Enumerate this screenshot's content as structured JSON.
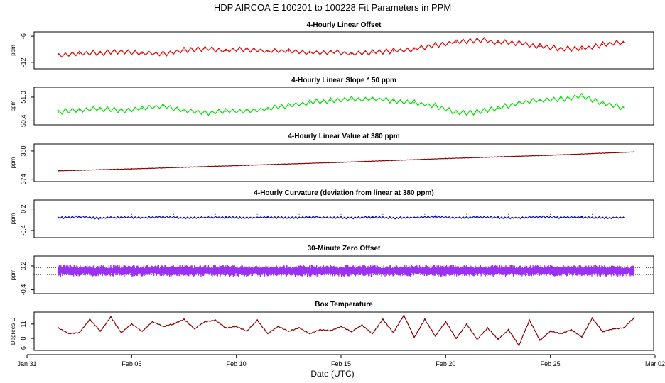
{
  "title": "HDP   AIRCOA E   100201 to 100228   Fit Parameters in PPM",
  "xlabel": "Date (UTC)",
  "x_ticks": [
    {
      "day": 0,
      "label": "Jan 31"
    },
    {
      "day": 5,
      "label": "Feb 05"
    },
    {
      "day": 10,
      "label": "Feb 10"
    },
    {
      "day": 15,
      "label": "Feb 15"
    },
    {
      "day": 20,
      "label": "Feb 20"
    },
    {
      "day": 25,
      "label": "Feb 25"
    },
    {
      "day": 30,
      "label": "Mar 02"
    }
  ],
  "x_range": [
    0,
    30
  ],
  "chart_data": [
    {
      "type": "line",
      "title": "4-Hourly Linear Offset",
      "ylabel": "ppm",
      "color": "#e00000",
      "ylim": [
        -13.5,
        -5
      ],
      "y_ticks": [
        {
          "v": -12,
          "label": "-12"
        },
        {
          "v": -6,
          "label": "-6"
        }
      ],
      "x": [
        1.5,
        2.5,
        3.5,
        4.5,
        5.5,
        6.5,
        7.5,
        8.5,
        9.5,
        10.5,
        11.5,
        12.5,
        13.5,
        14.5,
        15.5,
        16.5,
        17.5,
        18.5,
        19.5,
        20.5,
        21.5,
        22.5,
        23.5,
        24.5,
        25.5,
        26.5,
        27.5,
        28.5
      ],
      "values": [
        -10.2,
        -10.0,
        -9.8,
        -9.6,
        -9.9,
        -10.1,
        -9.2,
        -8.8,
        -9.3,
        -9.0,
        -9.5,
        -9.4,
        -9.8,
        -9.6,
        -10.0,
        -9.7,
        -9.4,
        -8.9,
        -8.0,
        -7.3,
        -6.8,
        -7.4,
        -7.6,
        -8.3,
        -8.8,
        -8.9,
        -7.9,
        -7.4
      ],
      "reference_lines": []
    },
    {
      "type": "line",
      "title": "4-Hourly Linear Slope * 50 ppm",
      "ylabel": "ppm",
      "color": "#00e000",
      "ylim": [
        50.3,
        51.25
      ],
      "y_ticks": [
        {
          "v": 50.4,
          "label": "50.4"
        },
        {
          "v": 51.0,
          "label": "51.0"
        }
      ],
      "x": [
        1.5,
        2.5,
        3.5,
        4.5,
        5.5,
        6.5,
        7.5,
        8.5,
        9.5,
        10.5,
        11.5,
        12.5,
        13.5,
        14.5,
        15.5,
        16.5,
        17.5,
        18.5,
        19.5,
        20.5,
        21.5,
        22.5,
        23.5,
        24.5,
        25.5,
        26.5,
        27.5,
        28.5
      ],
      "values": [
        50.62,
        50.68,
        50.7,
        50.66,
        50.72,
        50.78,
        50.66,
        50.6,
        50.64,
        50.66,
        50.7,
        50.78,
        50.86,
        50.92,
        50.95,
        50.96,
        50.92,
        50.86,
        50.78,
        50.6,
        50.62,
        50.72,
        50.86,
        50.92,
        50.96,
        51.02,
        50.84,
        50.74
      ],
      "reference_lines": []
    },
    {
      "type": "line",
      "title": "4-Hourly Linear Value at 380 ppm",
      "ylabel": "ppm",
      "color": "#8b0000",
      "ylim": [
        373.5,
        381.5
      ],
      "y_ticks": [
        {
          "v": 374,
          "label": "374"
        },
        {
          "v": 380,
          "label": "380"
        }
      ],
      "x": [
        1.5,
        5,
        10,
        15,
        20,
        25,
        29
      ],
      "values": [
        375.8,
        376.2,
        376.9,
        377.6,
        378.4,
        379.1,
        379.8
      ],
      "reference_lines": []
    },
    {
      "type": "line",
      "title": "4-Hourly Curvature (deviation from linear at 380 ppm)",
      "ylabel": "ppm",
      "color": "#0000cc",
      "ylim": [
        -0.6,
        0.45
      ],
      "y_ticks": [
        {
          "v": -0.4,
          "label": "-0.4"
        },
        {
          "v": 0.2,
          "label": "0.2"
        }
      ],
      "x": [
        1.5,
        2.5,
        3.5,
        4.5,
        5.5,
        6.5,
        7.5,
        8.5,
        9.5,
        10.5,
        11.5,
        12.5,
        13.5,
        14.5,
        15.5,
        16.5,
        17.5,
        18.5,
        19.5,
        20.5,
        21.5,
        22.5,
        23.5,
        24.5,
        25.5,
        26.5,
        27.5,
        28.5
      ],
      "values": [
        -0.05,
        -0.02,
        -0.06,
        -0.03,
        -0.05,
        -0.02,
        -0.05,
        -0.04,
        -0.03,
        -0.05,
        -0.03,
        -0.05,
        -0.03,
        -0.04,
        -0.05,
        -0.03,
        -0.05,
        -0.04,
        -0.02,
        -0.05,
        -0.03,
        -0.04,
        -0.05,
        -0.02,
        -0.04,
        -0.03,
        -0.05,
        -0.04
      ],
      "reference_lines": []
    },
    {
      "type": "line",
      "title": "30-Minute Zero Offset",
      "ylabel": "ppm",
      "color": "#9a30f0",
      "ylim": [
        -0.5,
        0.45
      ],
      "y_ticks": [
        {
          "v": -0.4,
          "label": "-0.4"
        },
        {
          "v": 0.2,
          "label": "0.2"
        }
      ],
      "x": [
        1.5,
        29
      ],
      "values": [
        0.08,
        0.08
      ],
      "reference_lines": [
        0.15,
        -0.02
      ]
    },
    {
      "type": "line",
      "title": "Box Temperature",
      "ylabel": "Degrees C",
      "color": "#8b0000",
      "ylim": [
        5.5,
        13.5
      ],
      "y_ticks": [
        {
          "v": 6,
          "label": "6"
        },
        {
          "v": 8,
          "label": "8"
        },
        {
          "v": 11,
          "label": "11"
        }
      ],
      "x": [
        1.5,
        2,
        2.5,
        3,
        3.5,
        4,
        4.5,
        5,
        5.5,
        6,
        6.5,
        7,
        7.5,
        8,
        8.5,
        9,
        9.5,
        10,
        10.5,
        11,
        11.5,
        12,
        12.5,
        13,
        13.5,
        14,
        14.5,
        15,
        15.5,
        16,
        16.5,
        17,
        17.5,
        18,
        18.5,
        19,
        19.5,
        20,
        20.5,
        21,
        21.5,
        22,
        22.5,
        23,
        23.5,
        24,
        24.5,
        25,
        25.5,
        26,
        26.5,
        27,
        27.5,
        28,
        28.5,
        29
      ],
      "values": [
        10.2,
        9.0,
        9.2,
        12.0,
        9.5,
        12.5,
        9.2,
        11.0,
        9.5,
        11.5,
        10.5,
        11.0,
        12.0,
        10.0,
        11.5,
        11.8,
        10.2,
        10.5,
        9.5,
        11.8,
        9.0,
        10.5,
        9.5,
        10.2,
        9.0,
        9.8,
        9.6,
        10.5,
        9.4,
        10.8,
        9.0,
        12.0,
        9.2,
        12.8,
        8.2,
        12.0,
        8.5,
        11.5,
        8.0,
        11.0,
        7.8,
        10.2,
        7.8,
        9.8,
        6.5,
        11.8,
        7.6,
        9.5,
        9.0,
        9.8,
        8.3,
        12.2,
        9.4,
        10.0,
        10.2,
        12.3
      ],
      "reference_lines": []
    }
  ]
}
